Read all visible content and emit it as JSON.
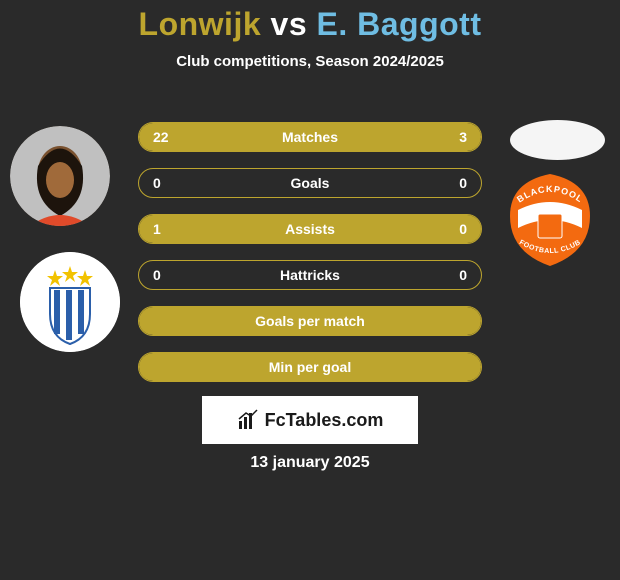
{
  "title": {
    "player1_name": "Lonwijk",
    "player1_color": "#bda52e",
    "vs": "vs",
    "vs_color": "#ffffff",
    "player2_name": "E. Baggott",
    "player2_color": "#6fbde3"
  },
  "subtitle": "Club competitions, Season 2024/2025",
  "avatars": {
    "player1_name_tag": "player-lonwijk",
    "player2_name_tag": "player-baggott",
    "club1_name_tag": "club-huddersfield",
    "club2_name_tag": "club-blackpool"
  },
  "club1": {
    "stripe_color": "#2b5faa",
    "bg_color": "#ffffff",
    "star_color": "#f2c200"
  },
  "club2": {
    "primary": "#f36a10",
    "text_color": "#ffffff",
    "band_color": "#ffffff",
    "top_text": "BLACKPOOL",
    "bottom_text": "FOOTBALL CLUB"
  },
  "bars": {
    "accent": "#bda52e",
    "text_color": "#ffffff",
    "rows": [
      {
        "label": "Matches",
        "left": "22",
        "right": "3",
        "left_pct": 88,
        "right_pct": 12
      },
      {
        "label": "Goals",
        "left": "0",
        "right": "0",
        "left_pct": 0,
        "right_pct": 0
      },
      {
        "label": "Assists",
        "left": "1",
        "right": "0",
        "left_pct": 100,
        "right_pct": 0
      },
      {
        "label": "Hattricks",
        "left": "0",
        "right": "0",
        "left_pct": 0,
        "right_pct": 0
      },
      {
        "label": "Goals per match",
        "left": "",
        "right": "",
        "full": true
      },
      {
        "label": "Min per goal",
        "left": "",
        "right": "",
        "full": true
      }
    ]
  },
  "badge": {
    "text": "FcTables.com",
    "bg": "#ffffff",
    "text_color": "#1a1a1a"
  },
  "date": "13 january 2025"
}
